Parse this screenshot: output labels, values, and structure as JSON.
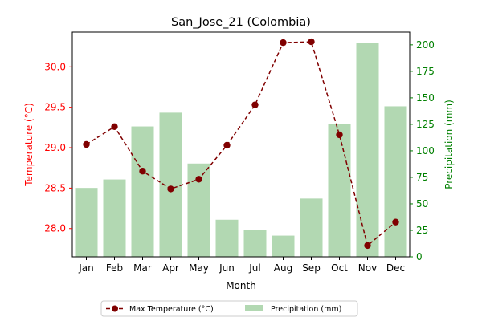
{
  "chart_data": {
    "type": "bar",
    "title": "San_Jose_21 (Colombia)",
    "xlabel": "Month",
    "categories": [
      "Jan",
      "Feb",
      "Mar",
      "Apr",
      "May",
      "Jun",
      "Jul",
      "Aug",
      "Sep",
      "Oct",
      "Nov",
      "Dec"
    ],
    "left_axis": {
      "label": "Temperature (°C)",
      "ylim": [
        27.65,
        30.43
      ],
      "ticks": [
        "28.0",
        "28.5",
        "29.0",
        "29.5",
        "30.0"
      ],
      "color": "#ff0000"
    },
    "right_axis": {
      "label": "Precipitation (mm)",
      "ylim": [
        0,
        212
      ],
      "ticks": [
        "0",
        "25",
        "50",
        "75",
        "100",
        "125",
        "150",
        "175",
        "200"
      ],
      "color": "#008000"
    },
    "series": [
      {
        "name": "Max Temperature (°C)",
        "type": "line",
        "axis": "left",
        "color": "#800000",
        "values": [
          29.04,
          29.26,
          28.71,
          28.49,
          28.61,
          29.03,
          29.53,
          30.3,
          30.31,
          29.16,
          27.79,
          28.08
        ]
      },
      {
        "name": "Precipitation (mm)",
        "type": "bar",
        "axis": "right",
        "color": "#b2d8b2",
        "values": [
          65,
          73,
          123,
          136,
          88,
          35,
          25,
          20,
          55,
          125,
          202,
          142
        ]
      }
    ],
    "legend_position": "bottom-center"
  }
}
